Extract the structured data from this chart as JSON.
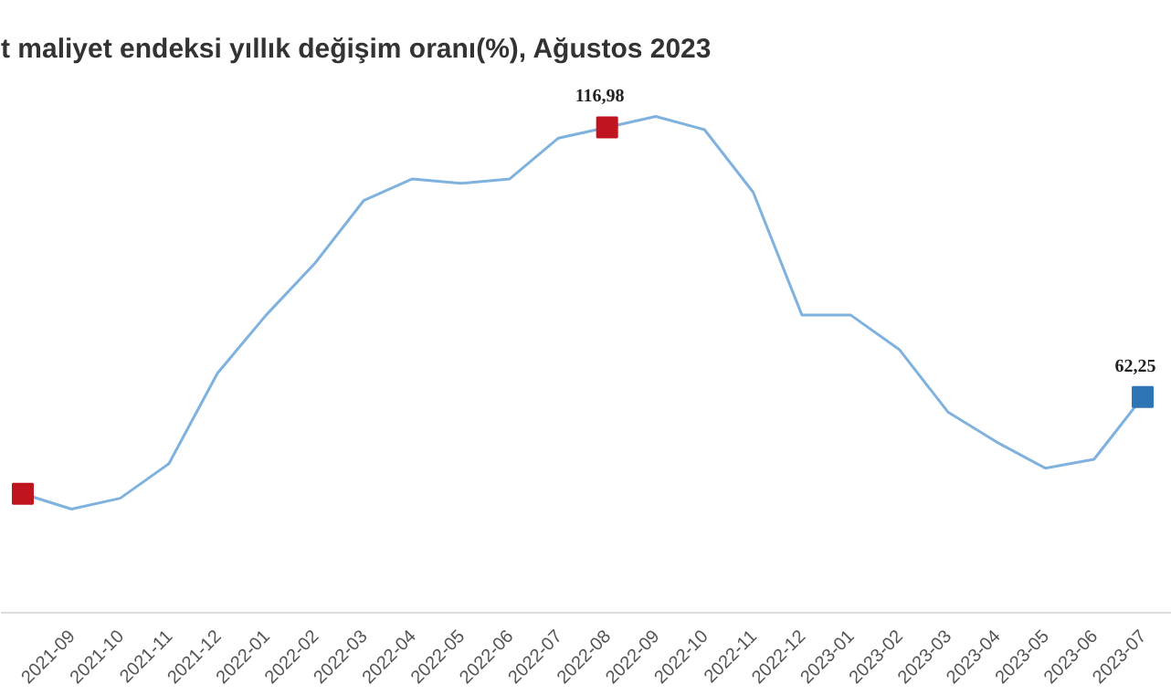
{
  "chart_data": {
    "type": "line",
    "title": "t maliyet endeksi yıllık değişim oranı(%), Ağustos 2023",
    "categories": [
      null,
      "2021-09",
      "2021-10",
      "2021-11",
      "2021-12",
      "2022-01",
      "2022-02",
      "2022-03",
      "2022-04",
      "2022-05",
      "2022-06",
      "2022-07",
      "2022-08",
      "2022-09",
      "2022-10",
      "2022-11",
      "2022-12",
      "2023-01",
      "2023-02",
      "2023-03",
      "2023-04",
      "2023-05",
      "2023-06",
      "2023-07"
    ],
    "series": [
      {
        "color": "#7fb2de",
        "values": [
          42.6,
          39.5,
          41.7,
          48.7,
          67.1,
          78.9,
          89.4,
          102.1,
          106.5,
          105.6,
          106.5,
          114.8,
          116.98,
          119.2,
          116.5,
          103.8,
          78.9,
          78.9,
          71.9,
          59.2,
          53.1,
          47.8,
          49.6,
          62.25
        ]
      },
      {
        "type": "scatter",
        "marker": "square",
        "colors": [
          "#c0141e",
          null,
          null,
          null,
          null,
          null,
          null,
          null,
          null,
          null,
          null,
          null,
          "#c0141e",
          null,
          null,
          null,
          null,
          null,
          null,
          null,
          null,
          null,
          null,
          "#2e75b6"
        ],
        "values": [
          42.6,
          null,
          null,
          null,
          null,
          null,
          null,
          null,
          null,
          null,
          null,
          null,
          116.98,
          null,
          null,
          null,
          null,
          null,
          null,
          null,
          null,
          null,
          null,
          62.25
        ],
        "value_labels": [
          null,
          null,
          null,
          null,
          null,
          null,
          null,
          null,
          null,
          null,
          null,
          null,
          "116,98",
          null,
          null,
          null,
          null,
          null,
          null,
          null,
          null,
          null,
          null,
          "62,25"
        ]
      }
    ],
    "grid": false
  }
}
